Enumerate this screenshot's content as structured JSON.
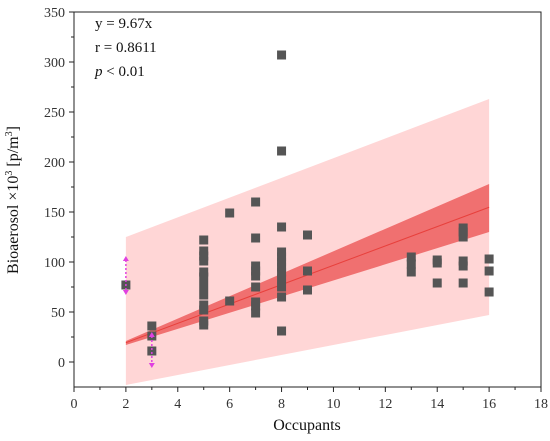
{
  "chart_data": {
    "type": "scatter",
    "xlabel": "Occupants",
    "ylabel_main": "Bioaerosol ×10",
    "ylabel_sup": "3",
    "ylabel_unit": " [p/m",
    "ylabel_unit_sup": "3",
    "ylabel_close": "]",
    "xlim": [
      0,
      18
    ],
    "ylim": [
      -25,
      350
    ],
    "x_ticks": [
      0,
      2,
      4,
      6,
      8,
      10,
      12,
      14,
      16,
      18
    ],
    "y_ticks": [
      0,
      50,
      100,
      150,
      200,
      250,
      300,
      350
    ],
    "grid": false,
    "annotations": {
      "equation": "y = 9.67x",
      "r": "r = 0.8611",
      "p_symbol": "p",
      "p_rest": " < 0.01"
    },
    "fit": {
      "slope": 9.67,
      "x_range": [
        2,
        16
      ],
      "line_color": "#e8403c",
      "confidence_band": {
        "x": [
          2,
          16
        ],
        "lower_start": 17,
        "upper_start": 21,
        "lower_end": 130,
        "upper_end": 178,
        "color": "#f07070"
      },
      "prediction_band": {
        "x": [
          2,
          16
        ],
        "lower_start": -23,
        "upper_start": 125,
        "lower_end": 47,
        "upper_end": 263,
        "color": "#ffd6d6"
      }
    },
    "marker_color": "#555555",
    "highlight_color": "#e040e0",
    "highlight_arrows_x": [
      2,
      3
    ],
    "points": [
      [
        2,
        77
      ],
      [
        3,
        36
      ],
      [
        3,
        26
      ],
      [
        3,
        11
      ],
      [
        5,
        122
      ],
      [
        5,
        111
      ],
      [
        5,
        106
      ],
      [
        5,
        101
      ],
      [
        5,
        90
      ],
      [
        5,
        85
      ],
      [
        5,
        76
      ],
      [
        5,
        67
      ],
      [
        5,
        57
      ],
      [
        5,
        52
      ],
      [
        5,
        41
      ],
      [
        5,
        37
      ],
      [
        6,
        149
      ],
      [
        6,
        61
      ],
      [
        7,
        160
      ],
      [
        7,
        124
      ],
      [
        7,
        96
      ],
      [
        7,
        91
      ],
      [
        7,
        86
      ],
      [
        7,
        75
      ],
      [
        7,
        60
      ],
      [
        7,
        56
      ],
      [
        7,
        49
      ],
      [
        8,
        307
      ],
      [
        8,
        211
      ],
      [
        8,
        135
      ],
      [
        8,
        110
      ],
      [
        8,
        105
      ],
      [
        8,
        100
      ],
      [
        8,
        95
      ],
      [
        8,
        90
      ],
      [
        8,
        83
      ],
      [
        8,
        75
      ],
      [
        8,
        65
      ],
      [
        8,
        31
      ],
      [
        9,
        127
      ],
      [
        9,
        91
      ],
      [
        9,
        72
      ],
      [
        13,
        105
      ],
      [
        13,
        98
      ],
      [
        13,
        90
      ],
      [
        14,
        102
      ],
      [
        14,
        99
      ],
      [
        14,
        79
      ],
      [
        15,
        134
      ],
      [
        15,
        130
      ],
      [
        15,
        125
      ],
      [
        15,
        101
      ],
      [
        15,
        96
      ],
      [
        15,
        79
      ],
      [
        16,
        103
      ],
      [
        16,
        91
      ],
      [
        16,
        70
      ]
    ]
  }
}
